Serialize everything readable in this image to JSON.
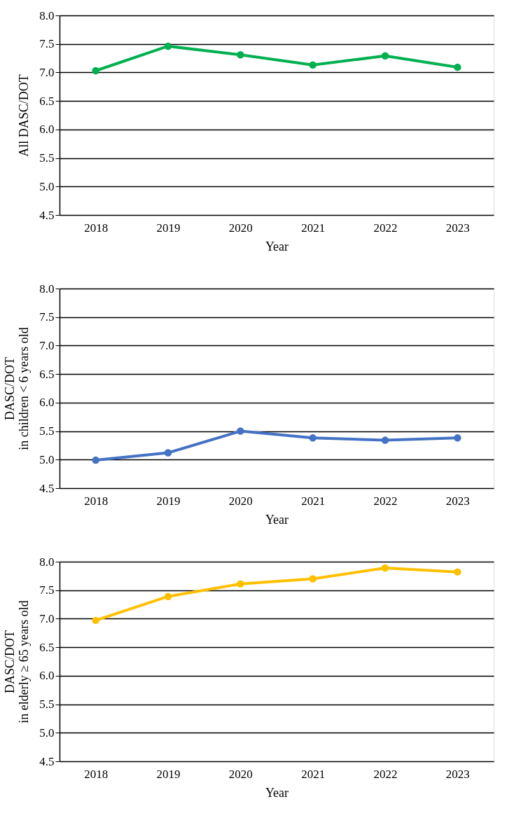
{
  "chart_data": [
    {
      "type": "line",
      "xlabel": "Year",
      "ylabel": "All DASC/DOT",
      "categories": [
        "2018",
        "2019",
        "2020",
        "2021",
        "2022",
        "2023"
      ],
      "series": [
        {
          "color": "#00b050",
          "values": [
            7.03,
            7.46,
            7.31,
            7.13,
            7.29,
            7.09
          ]
        }
      ],
      "ylim": [
        4.5,
        8.0
      ],
      "yticks": [
        {
          "value": 4.5,
          "label": "4.5"
        },
        {
          "value": 5.0,
          "label": "5.0"
        },
        {
          "value": 5.5,
          "label": "5.5"
        },
        {
          "value": 6.0,
          "label": "6.0"
        },
        {
          "value": 6.5,
          "label": "6.5"
        },
        {
          "value": 7.0,
          "label": "7.0"
        },
        {
          "value": 7.5,
          "label": "7.5"
        },
        {
          "value": 8.0,
          "label": "8.0"
        }
      ],
      "grid": "y",
      "marker": "circle",
      "line_style": "solid",
      "legend": false
    },
    {
      "type": "line",
      "xlabel": "Year",
      "ylabel": "DASC/DOT\nin children < 6 years old",
      "categories": [
        "2018",
        "2019",
        "2020",
        "2021",
        "2022",
        "2023"
      ],
      "series": [
        {
          "color": "#4472c4",
          "values": [
            4.99,
            5.12,
            5.5,
            5.38,
            5.34,
            5.38
          ]
        }
      ],
      "ylim": [
        4.5,
        8.0
      ],
      "yticks": [
        {
          "value": 4.5,
          "label": "4.5"
        },
        {
          "value": 5.0,
          "label": "5.0"
        },
        {
          "value": 5.5,
          "label": "5.5"
        },
        {
          "value": 6.0,
          "label": "6.0"
        },
        {
          "value": 6.5,
          "label": "6.5"
        },
        {
          "value": 7.0,
          "label": "7.0"
        },
        {
          "value": 7.5,
          "label": "7.5"
        },
        {
          "value": 8.0,
          "label": "8.0"
        }
      ],
      "grid": "y",
      "marker": "circle",
      "line_style": "solid",
      "legend": false
    },
    {
      "type": "line",
      "xlabel": "Year",
      "ylabel": "DASC/DOT\nin elderly ≥ 65 years old",
      "categories": [
        "2018",
        "2019",
        "2020",
        "2021",
        "2022",
        "2023"
      ],
      "series": [
        {
          "color": "#ffc000",
          "values": [
            6.97,
            7.39,
            7.61,
            7.7,
            7.89,
            7.82
          ]
        }
      ],
      "ylim": [
        4.5,
        8.0
      ],
      "yticks": [
        {
          "value": 4.5,
          "label": "4.5"
        },
        {
          "value": 5.0,
          "label": "5.0"
        },
        {
          "value": 5.5,
          "label": "5.5"
        },
        {
          "value": 6.0,
          "label": "6.0"
        },
        {
          "value": 6.5,
          "label": "6.5"
        },
        {
          "value": 7.0,
          "label": "7.0"
        },
        {
          "value": 7.5,
          "label": "7.5"
        },
        {
          "value": 8.0,
          "label": "8.0"
        }
      ],
      "grid": "y",
      "marker": "circle",
      "line_style": "solid",
      "legend": false
    }
  ]
}
